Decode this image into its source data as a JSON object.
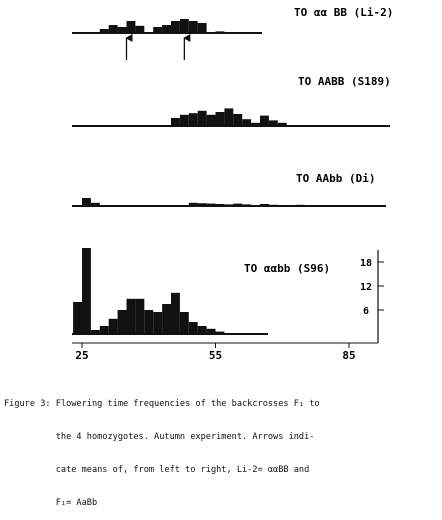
{
  "chart_data": {
    "type": "bar",
    "x_ticks": [
      25,
      55,
      85
    ],
    "y_ticks": [
      18,
      12,
      6
    ],
    "panels": [
      {
        "label": "TO  αα BB (Li-2)",
        "bars": [
          [
            30,
            1
          ],
          [
            32,
            2
          ],
          [
            34,
            1.5
          ],
          [
            36,
            3
          ],
          [
            38,
            1.8
          ],
          [
            42,
            1.5
          ],
          [
            44,
            2
          ],
          [
            46,
            3
          ],
          [
            48,
            3.5
          ],
          [
            50,
            3
          ],
          [
            52,
            2.5
          ],
          [
            56,
            0.4
          ]
        ],
        "arrows_at": [
          35,
          48
        ]
      },
      {
        "label": "TO  AABB (S189)",
        "bars": [
          [
            46,
            2
          ],
          [
            48,
            2.8
          ],
          [
            50,
            3.2
          ],
          [
            52,
            3.8
          ],
          [
            54,
            2.8
          ],
          [
            56,
            3.5
          ],
          [
            58,
            4.4
          ],
          [
            60,
            3
          ],
          [
            62,
            1.7
          ],
          [
            64,
            0.8
          ],
          [
            66,
            2.6
          ],
          [
            68,
            1.4
          ],
          [
            70,
            0.8
          ]
        ],
        "arrows_at": []
      },
      {
        "label": "TO  AAbb (Di)",
        "bars": [
          [
            26,
            2
          ],
          [
            28,
            0.8
          ],
          [
            50,
            0.8
          ],
          [
            52,
            0.7
          ],
          [
            54,
            0.6
          ],
          [
            56,
            0.5
          ],
          [
            58,
            0.4
          ],
          [
            60,
            0.6
          ],
          [
            62,
            0.4
          ],
          [
            66,
            0.5
          ],
          [
            68,
            0.3
          ],
          [
            74,
            0.3
          ]
        ],
        "arrows_at": []
      },
      {
        "label": "TO  ααbb (S96)",
        "bars": [
          [
            24,
            8
          ],
          [
            26,
            21.5
          ],
          [
            28,
            1
          ],
          [
            30,
            2
          ],
          [
            32,
            3.8
          ],
          [
            34,
            6
          ],
          [
            36,
            8.8
          ],
          [
            38,
            8.8
          ],
          [
            40,
            6
          ],
          [
            42,
            5.5
          ],
          [
            44,
            7.5
          ],
          [
            46,
            10.3
          ],
          [
            48,
            5.5
          ],
          [
            50,
            3
          ],
          [
            52,
            2
          ],
          [
            54,
            1.3
          ],
          [
            56,
            0.6
          ]
        ],
        "arrows_at": []
      }
    ]
  },
  "caption": {
    "line1": "Figure 3: Flowering time frequencies of the backcrosses F₁ to",
    "line2": "          the 4 homozygotes. Autumn experiment. Arrows indi-",
    "line3": "          cate means of, from left to right, Li-2= ααBB and",
    "line4": "          F₁= AaBb"
  }
}
